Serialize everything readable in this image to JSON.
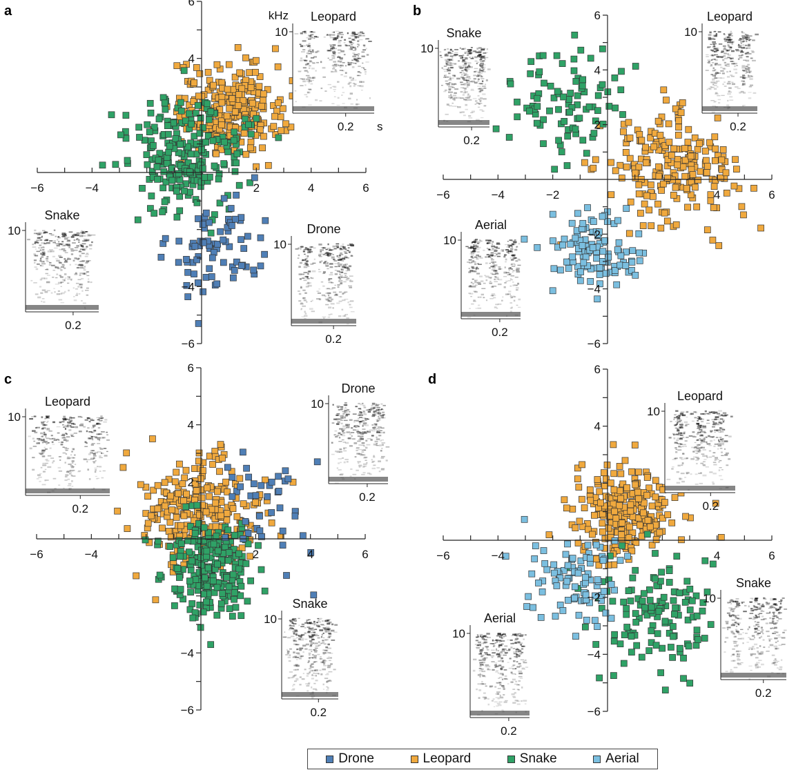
{
  "colors": {
    "Drone": "#4f7fb6",
    "Leopard": "#f0a93e",
    "Snake": "#2fa266",
    "Aerial": "#7bbfe0",
    "axis": "#222222"
  },
  "legend": [
    {
      "label": "Drone"
    },
    {
      "label": "Leopard"
    },
    {
      "label": "Snake"
    },
    {
      "label": "Aerial"
    }
  ],
  "chart_data": [
    {
      "panel": "a",
      "type": "scatter",
      "xlim": [
        -6,
        6
      ],
      "ylim": [
        -6,
        6
      ],
      "x_ticks": [
        "−6",
        "−4",
        "2",
        "4",
        "6"
      ],
      "y_ticks": [
        "6",
        "4",
        "−4",
        "−6"
      ],
      "series": [
        {
          "name": "Leopard",
          "cx": 1.0,
          "cy": 2.2,
          "sx": 1.0,
          "sy": 0.8,
          "n": 260
        },
        {
          "name": "Snake",
          "cx": -0.6,
          "cy": 0.6,
          "sx": 1.1,
          "sy": 1.0,
          "n": 230
        },
        {
          "name": "Drone",
          "cx": 0.6,
          "cy": -2.6,
          "sx": 0.8,
          "sy": 0.9,
          "n": 80
        }
      ],
      "insets": [
        {
          "title": "Leopard",
          "unit_y": "kHz",
          "unit_x": "s",
          "y_tick": "10",
          "x_tick": "0.2"
        },
        {
          "title": "Snake",
          "y_tick": "10",
          "x_tick": "0.2"
        },
        {
          "title": "Drone",
          "y_tick": "10",
          "x_tick": "0.2"
        }
      ]
    },
    {
      "panel": "b",
      "type": "scatter",
      "xlim": [
        -6,
        6
      ],
      "ylim": [
        -6,
        6
      ],
      "x_ticks": [
        "−6",
        "−4",
        "−2",
        "4",
        "6"
      ],
      "y_ticks": [
        "6",
        "4",
        "2",
        "−2",
        "−4",
        "−6"
      ],
      "series": [
        {
          "name": "Leopard",
          "cx": 2.2,
          "cy": 0.3,
          "sx": 1.2,
          "sy": 1.0,
          "n": 210
        },
        {
          "name": "Snake",
          "cx": -1.6,
          "cy": 2.8,
          "sx": 1.0,
          "sy": 0.9,
          "n": 90
        },
        {
          "name": "Aerial",
          "cx": -0.5,
          "cy": -2.6,
          "sx": 0.8,
          "sy": 0.7,
          "n": 110
        }
      ],
      "insets": [
        {
          "title": "Snake",
          "y_tick": "10",
          "x_tick": "0.2"
        },
        {
          "title": "Leopard",
          "y_tick": "10",
          "x_tick": "0.2"
        },
        {
          "title": "Aerial",
          "y_tick": "10",
          "x_tick": "0.2"
        }
      ]
    },
    {
      "panel": "c",
      "type": "scatter",
      "xlim": [
        -6,
        6
      ],
      "ylim": [
        -6,
        6
      ],
      "x_ticks": [
        "−6",
        "−4",
        "2",
        "4",
        "6"
      ],
      "y_ticks": [
        "6",
        "4",
        "2",
        "−4",
        "−6"
      ],
      "series": [
        {
          "name": "Leopard",
          "cx": 0.0,
          "cy": 1.0,
          "sx": 1.1,
          "sy": 0.9,
          "n": 260
        },
        {
          "name": "Snake",
          "cx": 0.4,
          "cy": -1.1,
          "sx": 0.8,
          "sy": 0.8,
          "n": 230
        },
        {
          "name": "Drone",
          "cx": 2.6,
          "cy": 1.3,
          "sx": 0.9,
          "sy": 1.0,
          "n": 40
        }
      ],
      "insets": [
        {
          "title": "Leopard",
          "y_tick": "10",
          "x_tick": "0.2"
        },
        {
          "title": "Drone",
          "y_tick": "10",
          "x_tick": "0.2"
        },
        {
          "title": "Snake",
          "y_tick": "10",
          "x_tick": "0.2"
        }
      ]
    },
    {
      "panel": "d",
      "type": "scatter",
      "xlim": [
        -6,
        6
      ],
      "ylim": [
        -6,
        6
      ],
      "x_ticks": [
        "−6",
        "−4",
        "4",
        "6"
      ],
      "y_ticks": [
        "6",
        "4",
        "−2",
        "−4",
        "−6"
      ],
      "series": [
        {
          "name": "Leopard",
          "cx": 0.6,
          "cy": 1.0,
          "sx": 1.0,
          "sy": 0.8,
          "n": 260
        },
        {
          "name": "Snake",
          "cx": 1.8,
          "cy": -2.6,
          "sx": 1.1,
          "sy": 1.0,
          "n": 130
        },
        {
          "name": "Aerial",
          "cx": -1.3,
          "cy": -1.4,
          "sx": 0.9,
          "sy": 0.9,
          "n": 90
        }
      ],
      "insets": [
        {
          "title": "Leopard",
          "y_tick": "10",
          "x_tick": "0.2"
        },
        {
          "title": "Snake",
          "y_tick": "10",
          "x_tick": "0.2"
        },
        {
          "title": "Aerial",
          "y_tick": "10",
          "x_tick": "0.2"
        }
      ]
    }
  ]
}
